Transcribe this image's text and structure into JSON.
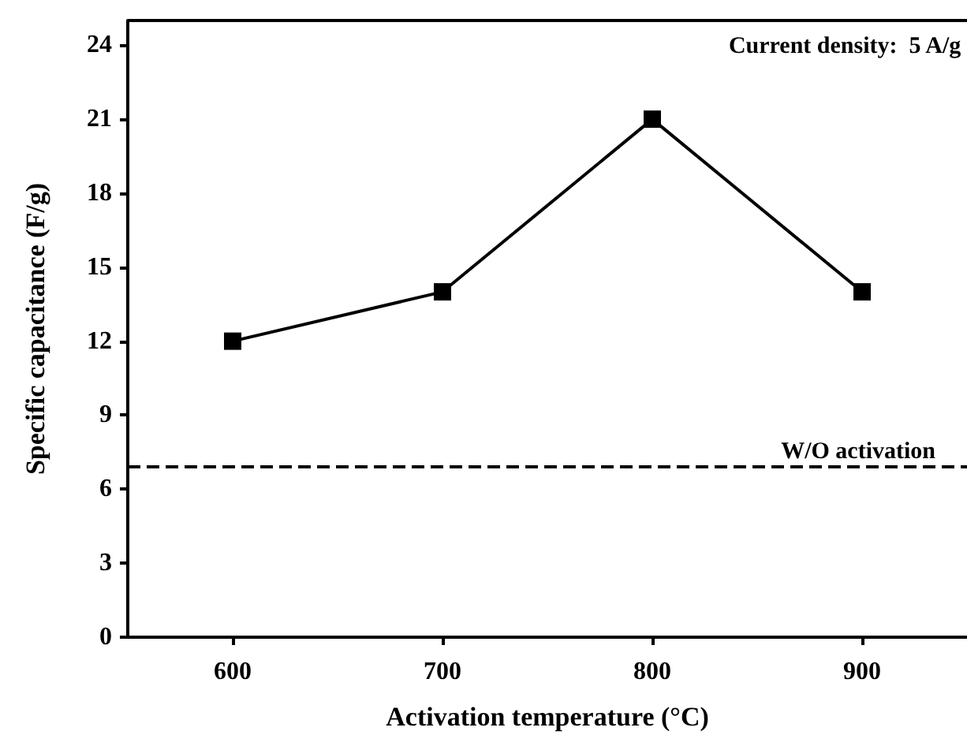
{
  "chart_data": {
    "type": "line",
    "xlabel": "Activation temperature (°C)",
    "ylabel": "Specific capacitance (F/g)",
    "x": [
      600,
      700,
      800,
      900
    ],
    "series": [
      {
        "color": "#000000",
        "values": [
          12,
          14,
          21,
          14
        ]
      }
    ],
    "xlim": [
      550,
      950
    ],
    "xticks": [
      600,
      700,
      800,
      900
    ],
    "ylim": [
      0,
      25
    ],
    "yticks": [
      0,
      3,
      6,
      9,
      12,
      15,
      18,
      21,
      24
    ],
    "marker": "square",
    "line_style": "solid",
    "grid": false,
    "ref_lines": [
      {
        "axis": "y",
        "value": 6.9,
        "label": "W/O activation",
        "line_style": "dashed",
        "color": "#000000"
      }
    ],
    "annotations": [
      "Current density:  5 A/g"
    ]
  }
}
